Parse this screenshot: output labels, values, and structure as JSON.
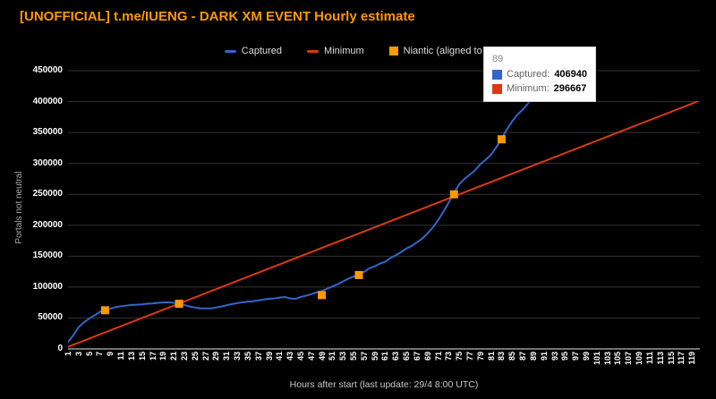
{
  "title": "[UNOFFICIAL] t.me/IUENG - DARK XM EVENT Hourly estimate",
  "tooltip": {
    "header": "89",
    "rows": [
      {
        "label": "Captured:",
        "value": "406940",
        "color": "#3366cc"
      },
      {
        "label": "Minimum:",
        "value": "296667",
        "color": "#dc3912"
      }
    ]
  },
  "chart_data": {
    "type": "line",
    "title": "[UNOFFICIAL] t.me/IUENG - DARK XM EVENT Hourly estimate",
    "xlabel": "Hours after start (last update: 29/4  8:00 UTC)",
    "ylabel": "Portals not neutral",
    "xlim": [
      1,
      120.5
    ],
    "ylim": [
      0,
      450000
    ],
    "grid": true,
    "legend_position": "top",
    "background": "#000000",
    "x_ticks": [
      1,
      3,
      5,
      7,
      9,
      11,
      13,
      15,
      17,
      19,
      21,
      23,
      25,
      27,
      29,
      31,
      33,
      35,
      37,
      39,
      41,
      43,
      45,
      47,
      49,
      51,
      53,
      55,
      57,
      59,
      61,
      63,
      65,
      67,
      69,
      71,
      73,
      75,
      77,
      79,
      81,
      83,
      85,
      87,
      89,
      91,
      93,
      95,
      97,
      99,
      101,
      103,
      105,
      107,
      109,
      111,
      113,
      115,
      117,
      119
    ],
    "y_ticks": [
      0,
      50000,
      100000,
      150000,
      200000,
      250000,
      300000,
      350000,
      400000,
      450000
    ],
    "series": [
      {
        "id": "captured",
        "name": "Captured",
        "type": "line",
        "color": "#3366cc",
        "x": [
          1,
          2,
          3,
          4,
          5,
          6,
          7,
          8,
          9,
          10,
          11,
          12,
          13,
          14,
          15,
          16,
          17,
          18,
          19,
          20,
          21,
          22,
          23,
          24,
          25,
          26,
          27,
          28,
          29,
          30,
          31,
          32,
          33,
          34,
          35,
          36,
          37,
          38,
          39,
          40,
          41,
          42,
          43,
          44,
          45,
          46,
          47,
          48,
          49,
          50,
          51,
          52,
          53,
          54,
          55,
          56,
          57,
          58,
          59,
          60,
          61,
          62,
          63,
          64,
          65,
          66,
          67,
          68,
          69,
          70,
          71,
          72,
          73,
          74,
          75,
          76,
          77,
          78,
          79,
          80,
          81,
          82,
          83,
          84,
          85,
          86,
          87,
          88,
          89
        ],
        "y": [
          11000,
          22000,
          35000,
          43000,
          49000,
          54000,
          60000,
          63500,
          65000,
          67500,
          69000,
          70000,
          71000,
          71500,
          72000,
          73000,
          73500,
          74500,
          75000,
          75500,
          74500,
          74000,
          71000,
          68500,
          67000,
          65500,
          65500,
          65500,
          67000,
          68500,
          70500,
          72500,
          74000,
          75500,
          76500,
          77000,
          78500,
          80000,
          81000,
          81500,
          83000,
          84000,
          81500,
          81000,
          84000,
          86000,
          88500,
          91500,
          93500,
          97500,
          101000,
          104500,
          109000,
          113500,
          117000,
          120500,
          124500,
          130500,
          133500,
          138000,
          141000,
          147000,
          151500,
          156500,
          162500,
          166500,
          172500,
          178500,
          187000,
          196500,
          208500,
          222000,
          237000,
          252000,
          266500,
          275000,
          282000,
          289000,
          299000,
          306000,
          314000,
          326000,
          340000,
          355000,
          368000,
          379000,
          387000,
          397000,
          406940
        ]
      },
      {
        "id": "minimum",
        "name": "Minimum",
        "type": "line",
        "color": "#dc3912",
        "x": [
          1,
          120
        ],
        "y": [
          3333,
          400000
        ]
      },
      {
        "id": "niantic",
        "name": "Niantic (aligned to nearest hour)",
        "type": "scatter",
        "marker": "square",
        "color": "#ff9900",
        "x": [
          8,
          22,
          49,
          56,
          74,
          83
        ],
        "y": [
          62500,
          73000,
          87000,
          119500,
          250000,
          339000
        ]
      }
    ]
  }
}
